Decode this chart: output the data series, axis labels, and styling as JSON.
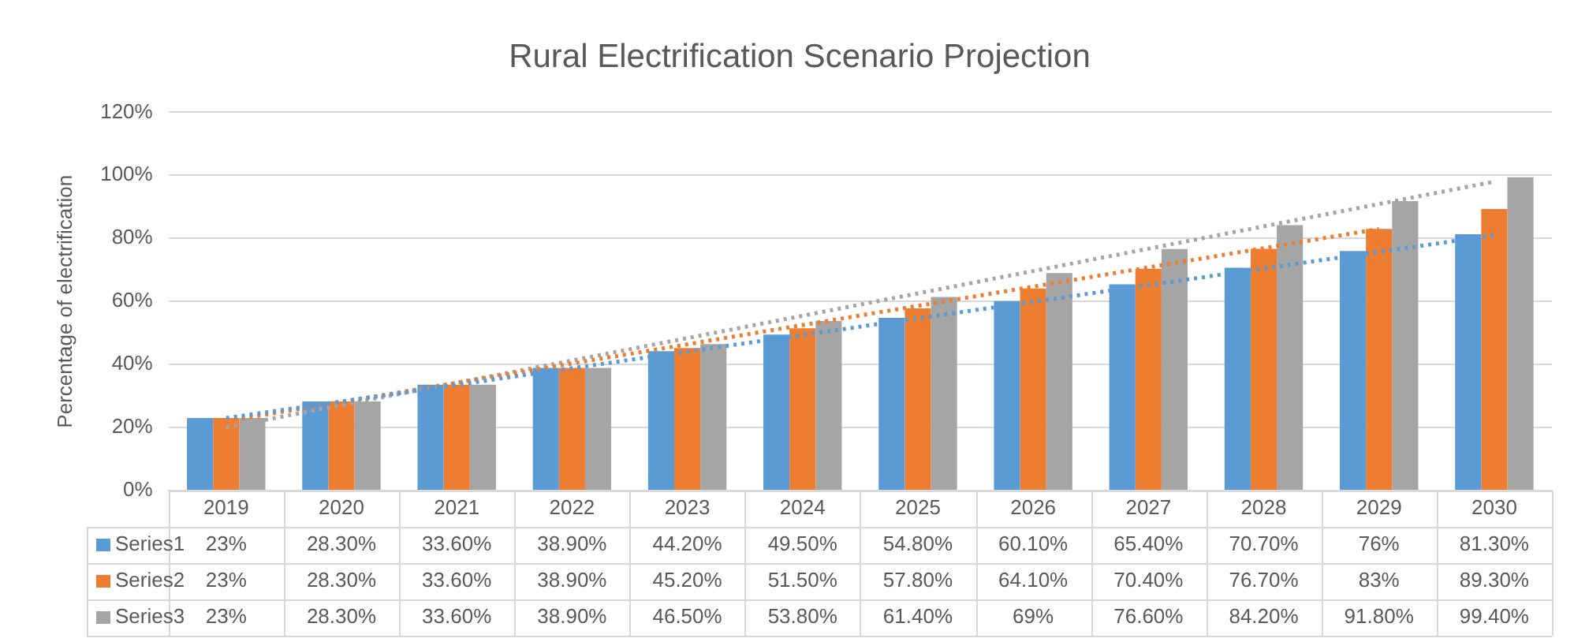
{
  "chart_data": {
    "type": "bar",
    "title": "Rural Electrification Scenario Projection",
    "ylabel": "Percentage of electrification",
    "categories": [
      "2019",
      "2020",
      "2021",
      "2022",
      "2023",
      "2024",
      "2025",
      "2026",
      "2027",
      "2028",
      "2029",
      "2030"
    ],
    "series": [
      {
        "name": "Series1",
        "color": "#5b9bd5",
        "values": [
          23,
          28.3,
          33.6,
          38.9,
          44.2,
          49.5,
          54.8,
          60.1,
          65.4,
          70.7,
          76,
          81.3
        ],
        "value_labels": [
          "23%",
          "28.30%",
          "33.60%",
          "38.90%",
          "44.20%",
          "49.50%",
          "54.80%",
          "60.10%",
          "65.40%",
          "70.70%",
          "76%",
          "81.30%"
        ]
      },
      {
        "name": "Series2",
        "color": "#ed7d31",
        "values": [
          23,
          28.3,
          33.6,
          38.9,
          45.2,
          51.5,
          57.8,
          64.1,
          70.4,
          76.7,
          83,
          89.3
        ],
        "value_labels": [
          "23%",
          "28.30%",
          "33.60%",
          "38.90%",
          "45.20%",
          "51.50%",
          "57.80%",
          "64.10%",
          "70.40%",
          "76.70%",
          "83%",
          "89.30%"
        ]
      },
      {
        "name": "Series3",
        "color": "#a5a5a5",
        "values": [
          23,
          28.3,
          33.6,
          38.9,
          46.5,
          53.8,
          61.4,
          69,
          76.6,
          84.2,
          91.8,
          99.4
        ],
        "value_labels": [
          "23%",
          "28.30%",
          "33.60%",
          "38.90%",
          "46.50%",
          "53.80%",
          "61.40%",
          "69%",
          "76.60%",
          "84.20%",
          "91.80%",
          "99.40%"
        ]
      },
      {
        "type": "line",
        "color": "#5b9bd5",
        "line_style": "dotted",
        "values": [
          23,
          null,
          null,
          null,
          null,
          null,
          null,
          null,
          null,
          null,
          null,
          81
        ]
      },
      {
        "type": "line",
        "color": "#ed7d31",
        "line_style": "dotted",
        "values": [
          22,
          null,
          null,
          null,
          null,
          null,
          null,
          null,
          null,
          null,
          83,
          null
        ]
      },
      {
        "type": "line",
        "color": "#a5a5a5",
        "line_style": "dotted",
        "values": [
          20,
          null,
          null,
          null,
          null,
          null,
          null,
          null,
          null,
          null,
          null,
          98
        ]
      }
    ],
    "ylim": [
      0,
      120
    ],
    "yticks": [
      {
        "value": 0,
        "label": "0%"
      },
      {
        "value": 20,
        "label": "20%"
      },
      {
        "value": 40,
        "label": "40%"
      },
      {
        "value": 60,
        "label": "60%"
      },
      {
        "value": 80,
        "label": "80%"
      },
      {
        "value": 100,
        "label": "100%"
      },
      {
        "value": 120,
        "label": "120%"
      }
    ],
    "grid": "y",
    "legend": "bottom left"
  }
}
